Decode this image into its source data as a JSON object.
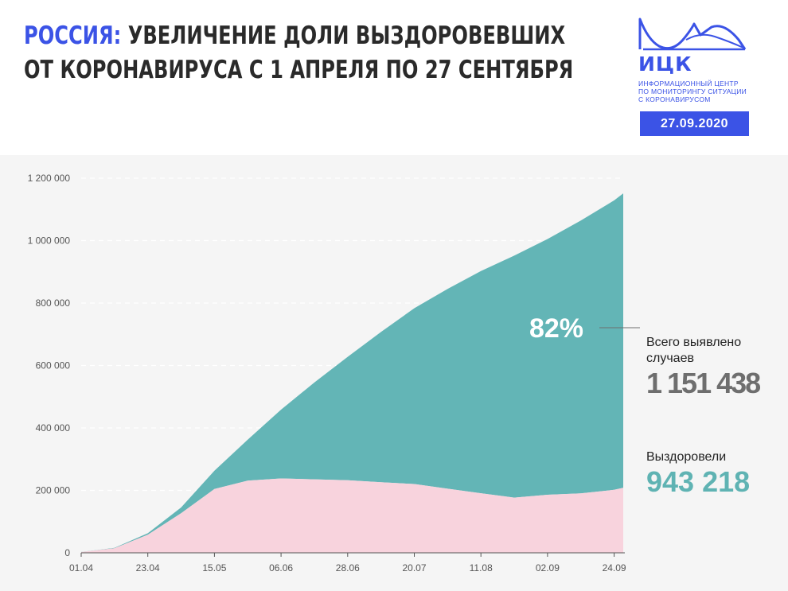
{
  "header": {
    "title_accent": "РОССИЯ:",
    "title_line1_rest": " УВЕЛИЧЕНИЕ ДОЛИ ВЫЗДОРОВЕВШИХ",
    "title_line2": "ОТ КОРОНАВИРУСА С 1 АПРЕЛЯ ПО 27 СЕНТЯБРЯ"
  },
  "logo": {
    "abbr": "ИЦК",
    "desc_line1": "ИНФОРМАЦИОННЫЙ ЦЕНТР",
    "desc_line2": "ПО МОНИТОРИНГУ СИТУАЦИИ",
    "desc_line3": "С КОРОНАВИРУСОМ",
    "icon": "mountain-wave-logo-icon"
  },
  "date_badge": "27.09.2020",
  "colors": {
    "accent": "#3b53e6",
    "active_pink": "#f8d3dd",
    "recovered_teal": "#63b5b6",
    "total_gray": "#6e6e6e"
  },
  "summary": {
    "total_label": "Всего выявлено случаев",
    "total_value": "1 151 438",
    "recovered_label": "Выздоровели",
    "recovered_value": "943 218",
    "recovered_percent": "82%"
  },
  "chart_data": {
    "type": "area",
    "title": "",
    "xlabel": "",
    "ylabel": "",
    "x_tick_labels": [
      "01.04",
      "23.04",
      "15.05",
      "06.06",
      "28.06",
      "20.07",
      "11.08",
      "02.09",
      "24.09"
    ],
    "y_tick_labels": [
      "0",
      "200 000",
      "400 000",
      "600 000",
      "800 000",
      "1 000 000",
      "1 200 000"
    ],
    "ylim": [
      0,
      1200000
    ],
    "xlim": [
      "01.04",
      "27.09"
    ],
    "grid": true,
    "x": [
      "01.04",
      "12.04",
      "23.04",
      "04.05",
      "15.05",
      "26.05",
      "06.06",
      "17.06",
      "28.06",
      "09.07",
      "20.07",
      "31.07",
      "11.08",
      "22.08",
      "02.09",
      "13.09",
      "24.09",
      "27.09"
    ],
    "series": [
      {
        "name": "Всего выявлено случаев",
        "color": "#63b5b6",
        "values": [
          2777,
          15770,
          62773,
          145268,
          262843,
          362342,
          458689,
          545458,
          627646,
          707301,
          783328,
          845443,
          902701,
          951897,
          1005000,
          1064438,
          1128836,
          1151438
        ]
      },
      {
        "name": "Выздоровели",
        "values": [
          190,
          1045,
          4891,
          18659,
          58226,
          131129,
          220454,
          310000,
          395000,
          481316,
          563000,
          640000,
          712000,
          775000,
          819043,
          874000,
          927000,
          943218
        ]
      }
    ],
    "active_cases_shown": {
      "color": "#f8d3dd",
      "values": [
        2587,
        14725,
        57882,
        126609,
        204617,
        231213,
        238235,
        235458,
        232646,
        225985,
        220328,
        205443,
        190701,
        176897,
        185957,
        190438,
        201836,
        208220
      ]
    },
    "annotation": "82%"
  }
}
